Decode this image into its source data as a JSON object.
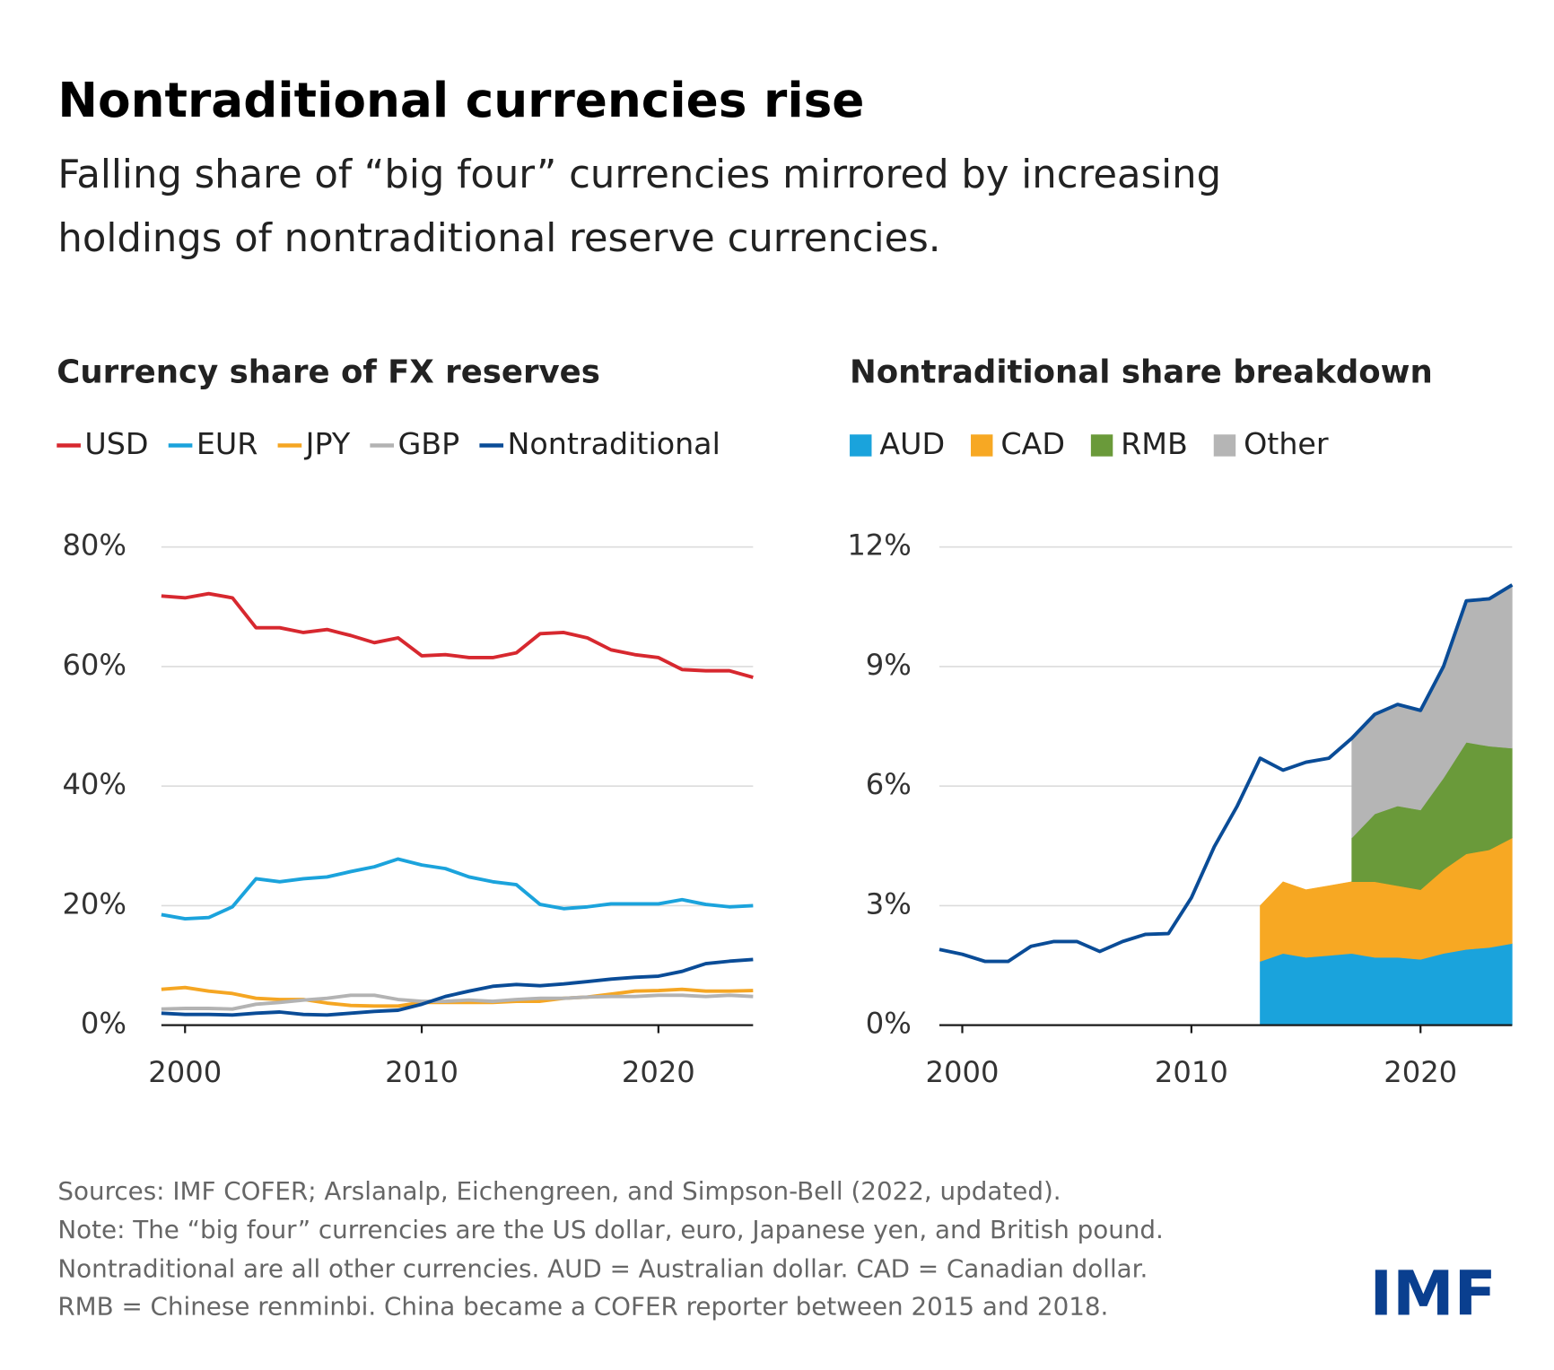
{
  "title": "Nontraditional currencies rise",
  "subtitle": [
    "Falling share of “big four” currencies mirrored by increasing",
    "holdings of nontraditional reserve currencies."
  ],
  "notes": [
    "Sources: IMF COFER; Arslanalp, Eichengreen, and Simpson-Bell (2022, updated).",
    "Note: The “big four” currencies are the US dollar, euro, Japanese yen, and British pound.",
    "Nontraditional are all other currencies. AUD = Australian dollar. CAD = Canadian dollar.",
    "RMB = Chinese renminbi. China became a COFER reporter between 2015 and 2018."
  ],
  "logo": "IMF",
  "chart_data": [
    {
      "type": "line",
      "title": "Currency share of FX reserves",
      "legend": "top-left",
      "grid": true,
      "x": [
        1999,
        2000,
        2001,
        2002,
        2003,
        2004,
        2005,
        2006,
        2007,
        2008,
        2009,
        2010,
        2011,
        2012,
        2013,
        2014,
        2015,
        2016,
        2017,
        2018,
        2019,
        2020,
        2021,
        2022,
        2023,
        2024
      ],
      "xlim": [
        1999,
        2024
      ],
      "xticks": [
        2000,
        2010,
        2020
      ],
      "ylim": [
        0,
        80
      ],
      "yticks": [
        {
          "value": 0,
          "label": "0%"
        },
        {
          "value": 20,
          "label": "20%"
        },
        {
          "value": 40,
          "label": "40%"
        },
        {
          "value": 60,
          "label": "60%"
        },
        {
          "value": 80,
          "label": "80%"
        }
      ],
      "series": [
        {
          "name": "USD",
          "color": "#d7282f",
          "values": [
            71.8,
            71.5,
            72.2,
            71.5,
            66.5,
            66.5,
            65.7,
            66.2,
            65.2,
            64,
            64.8,
            61.8,
            62,
            61.5,
            61.5,
            62.3,
            65.5,
            65.7,
            64.8,
            62.8,
            62,
            61.5,
            59.5,
            59.3,
            59.3,
            58.2
          ]
        },
        {
          "name": "EUR",
          "color": "#1ba3dc",
          "values": [
            18.5,
            17.8,
            18,
            19.8,
            24.5,
            24,
            24.5,
            24.8,
            25.7,
            26.5,
            27.8,
            26.8,
            26.2,
            24.8,
            24,
            23.5,
            20.2,
            19.5,
            19.8,
            20.3,
            20.3,
            20.3,
            21,
            20.2,
            19.8,
            20
          ]
        },
        {
          "name": "JPY",
          "color": "#f5a623",
          "values": [
            6,
            6.3,
            5.7,
            5.3,
            4.5,
            4.3,
            4.3,
            3.7,
            3.3,
            3.2,
            3.2,
            3.8,
            3.8,
            3.8,
            3.8,
            4,
            4,
            4.5,
            4.7,
            5.2,
            5.7,
            5.8,
            6,
            5.7,
            5.7,
            5.8
          ]
        },
        {
          "name": "GBP",
          "color": "#b3b3b3",
          "values": [
            2.7,
            2.8,
            2.8,
            2.7,
            3.5,
            3.8,
            4.2,
            4.5,
            5,
            5,
            4.3,
            4,
            4,
            4.2,
            4,
            4.3,
            4.5,
            4.5,
            4.7,
            4.8,
            4.8,
            5,
            5,
            4.8,
            5,
            4.8
          ]
        },
        {
          "name": "Nontraditional",
          "color": "#0a4c97",
          "values": [
            2,
            1.8,
            1.8,
            1.7,
            2,
            2.2,
            1.8,
            1.7,
            2,
            2.3,
            2.5,
            3.5,
            4.8,
            5.7,
            6.5,
            6.8,
            6.6,
            6.9,
            7.3,
            7.7,
            8,
            8.2,
            9,
            10.3,
            10.7,
            11
          ]
        }
      ]
    },
    {
      "type": "area",
      "title": "Nontraditional share breakdown",
      "legend": "top-left",
      "grid": true,
      "x": [
        1999,
        2000,
        2001,
        2002,
        2003,
        2004,
        2005,
        2006,
        2007,
        2008,
        2009,
        2010,
        2011,
        2012,
        2013,
        2014,
        2015,
        2016,
        2017,
        2018,
        2019,
        2020,
        2021,
        2022,
        2023,
        2024
      ],
      "xlim": [
        1999,
        2024
      ],
      "xticks": [
        2000,
        2010,
        2020
      ],
      "ylim": [
        0,
        12
      ],
      "yticks": [
        {
          "value": 0,
          "label": "0%"
        },
        {
          "value": 3,
          "label": "3%"
        },
        {
          "value": 6,
          "label": "6%"
        },
        {
          "value": 9,
          "label": "9%"
        },
        {
          "value": 12,
          "label": "12%"
        }
      ],
      "series": [
        {
          "name": "AUD",
          "color": "#1aa3dc",
          "values": [
            null,
            null,
            null,
            null,
            null,
            null,
            null,
            null,
            null,
            null,
            null,
            null,
            null,
            null,
            1.6,
            1.8,
            1.7,
            1.75,
            1.8,
            1.7,
            1.7,
            1.65,
            1.8,
            1.9,
            1.95,
            2.05
          ]
        },
        {
          "name": "CAD",
          "color": "#f7a823",
          "values": [
            null,
            null,
            null,
            null,
            null,
            null,
            null,
            null,
            null,
            null,
            null,
            null,
            null,
            null,
            1.4,
            1.8,
            1.7,
            1.75,
            1.8,
            1.9,
            1.8,
            1.75,
            2.1,
            2.4,
            2.45,
            2.65
          ]
        },
        {
          "name": "RMB",
          "color": "#6a9a3a",
          "values": [
            null,
            null,
            null,
            null,
            null,
            null,
            null,
            null,
            null,
            null,
            null,
            null,
            null,
            null,
            null,
            null,
            null,
            null,
            1.1,
            1.7,
            2,
            2,
            2.3,
            2.8,
            2.6,
            2.25
          ]
        },
        {
          "name": "Other",
          "color": "#b5b5b5",
          "values": [
            null,
            null,
            null,
            null,
            null,
            null,
            null,
            null,
            null,
            null,
            null,
            null,
            null,
            null,
            null,
            null,
            null,
            null,
            2.5,
            2.5,
            2.55,
            2.5,
            2.8,
            3.55,
            3.7,
            4.1
          ]
        }
      ],
      "line": {
        "color": "#0a4c97",
        "values": [
          1.9,
          1.78,
          1.6,
          1.6,
          1.98,
          2.1,
          2.1,
          1.85,
          2.1,
          2.28,
          2.3,
          3.2,
          4.48,
          5.5,
          6.7,
          6.4,
          6.6,
          6.7,
          7.2,
          7.8,
          8.05,
          7.9,
          9,
          10.65,
          10.7,
          11.05
        ]
      }
    }
  ]
}
